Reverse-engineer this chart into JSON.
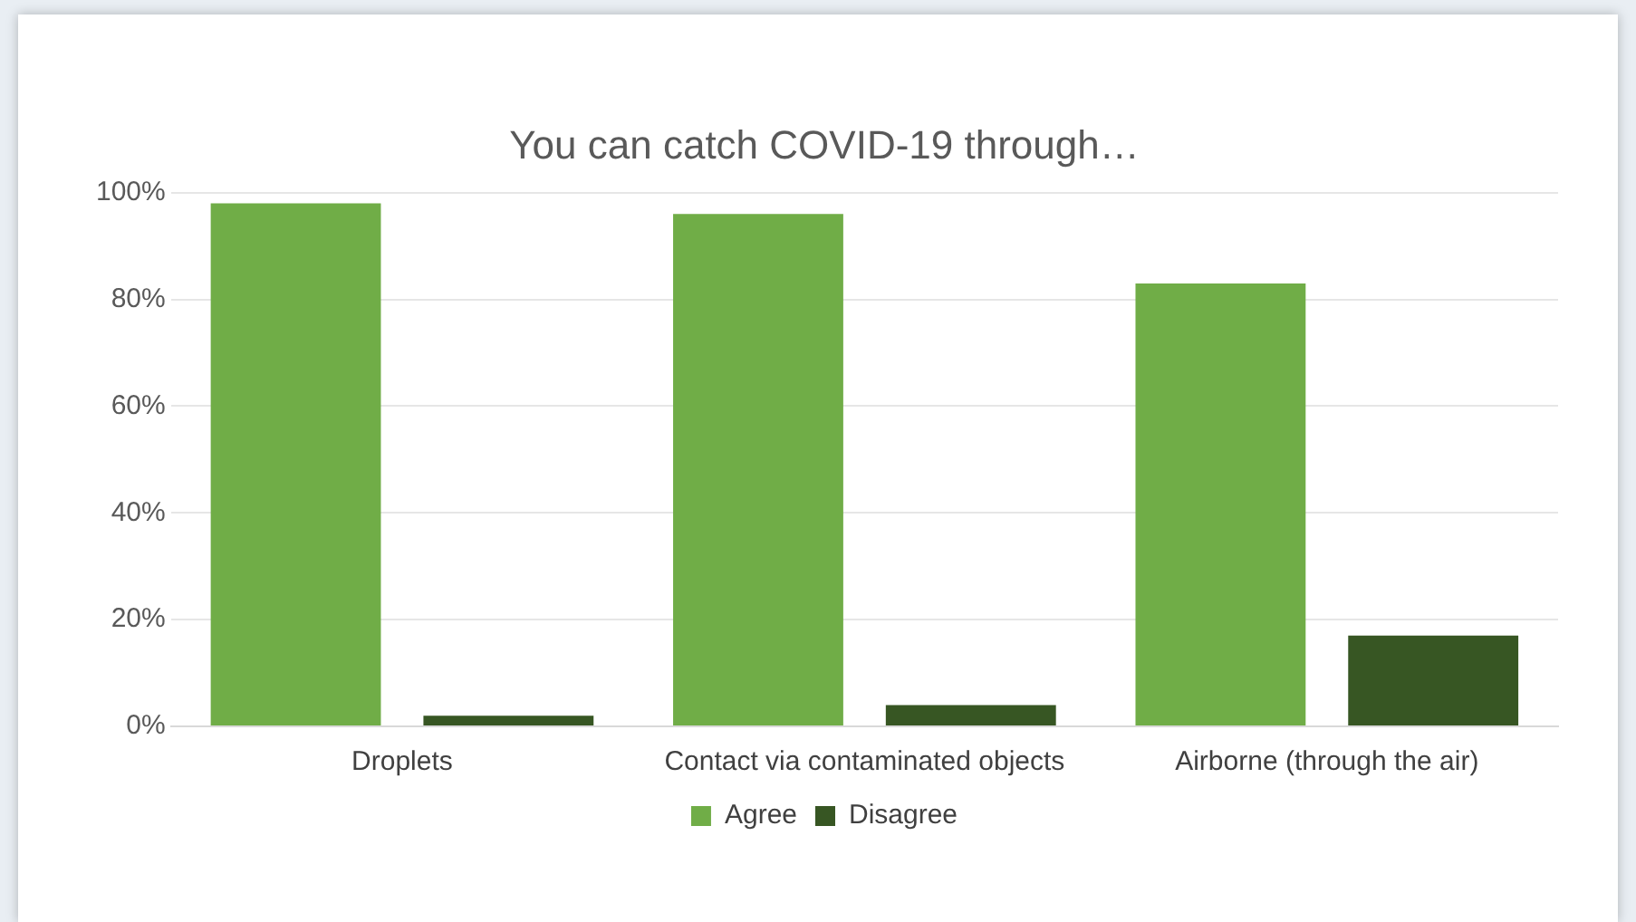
{
  "chart_data": {
    "type": "bar",
    "title": "You can catch COVID-19 through…",
    "categories": [
      "Droplets",
      "Contact via contaminated objects",
      "Airborne (through the air)"
    ],
    "series": [
      {
        "name": "Agree",
        "color": "#70ad47",
        "values": [
          98,
          96,
          83
        ]
      },
      {
        "name": "Disagree",
        "color": "#375623",
        "values": [
          2,
          4,
          17
        ]
      }
    ],
    "ylim": [
      0,
      100
    ],
    "yticks": [
      {
        "value": 0,
        "label": "0%"
      },
      {
        "value": 20,
        "label": "20%"
      },
      {
        "value": 40,
        "label": "40%"
      },
      {
        "value": 60,
        "label": "60%"
      },
      {
        "value": 80,
        "label": "80%"
      },
      {
        "value": 100,
        "label": "100%"
      }
    ],
    "grid": "y",
    "legend": "bottom"
  }
}
